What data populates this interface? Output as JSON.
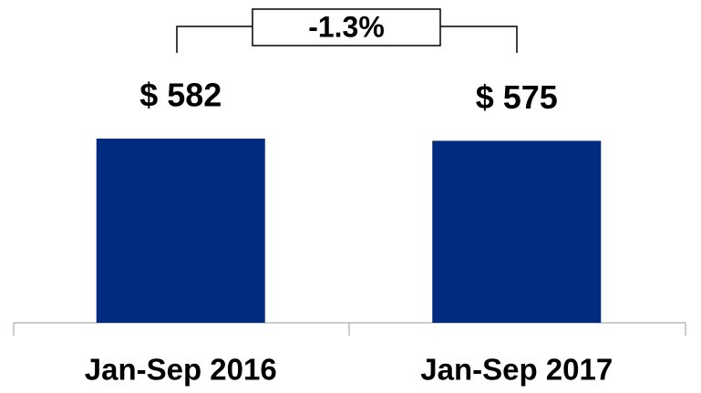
{
  "chart_data": {
    "type": "bar",
    "categories": [
      "Jan-Sep 2016",
      "Jan-Sep 2017"
    ],
    "values": [
      582,
      575
    ],
    "value_labels": [
      "$ 582",
      "$ 575"
    ],
    "color": "#002b7f",
    "annotation": "-1.3%"
  }
}
